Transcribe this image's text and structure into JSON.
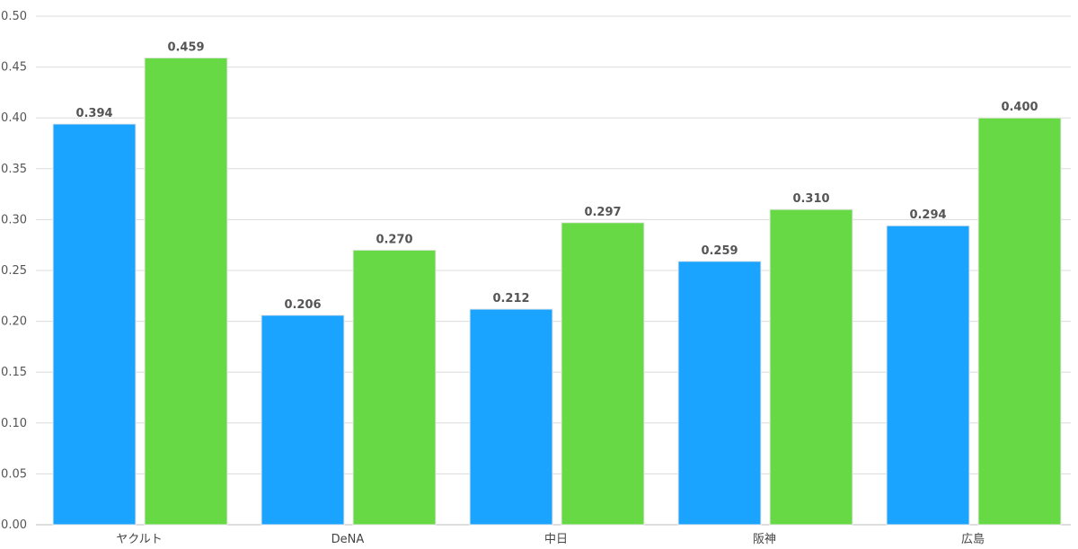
{
  "chart_data": {
    "type": "bar",
    "categories": [
      "ヤクルト",
      "DeNA",
      "中日",
      "阪神",
      "広島"
    ],
    "series": [
      {
        "values": [
          0.394,
          0.206,
          0.212,
          0.259,
          0.294
        ],
        "color": "#1aa3ff"
      },
      {
        "values": [
          0.459,
          0.27,
          0.297,
          0.31,
          0.4
        ],
        "color": "#66d944"
      }
    ],
    "data_labels": [
      [
        "0.394",
        "0.206",
        "0.212",
        "0.259",
        "0.294"
      ],
      [
        "0.459",
        "0.270",
        "0.297",
        "0.310",
        "0.400"
      ]
    ],
    "y_ticks": [
      "0.00",
      "0.05",
      "0.10",
      "0.15",
      "0.20",
      "0.25",
      "0.30",
      "0.35",
      "0.40",
      "0.45",
      "0.50"
    ],
    "ylim": [
      0,
      0.5
    ],
    "grid": true,
    "legend": "none"
  }
}
